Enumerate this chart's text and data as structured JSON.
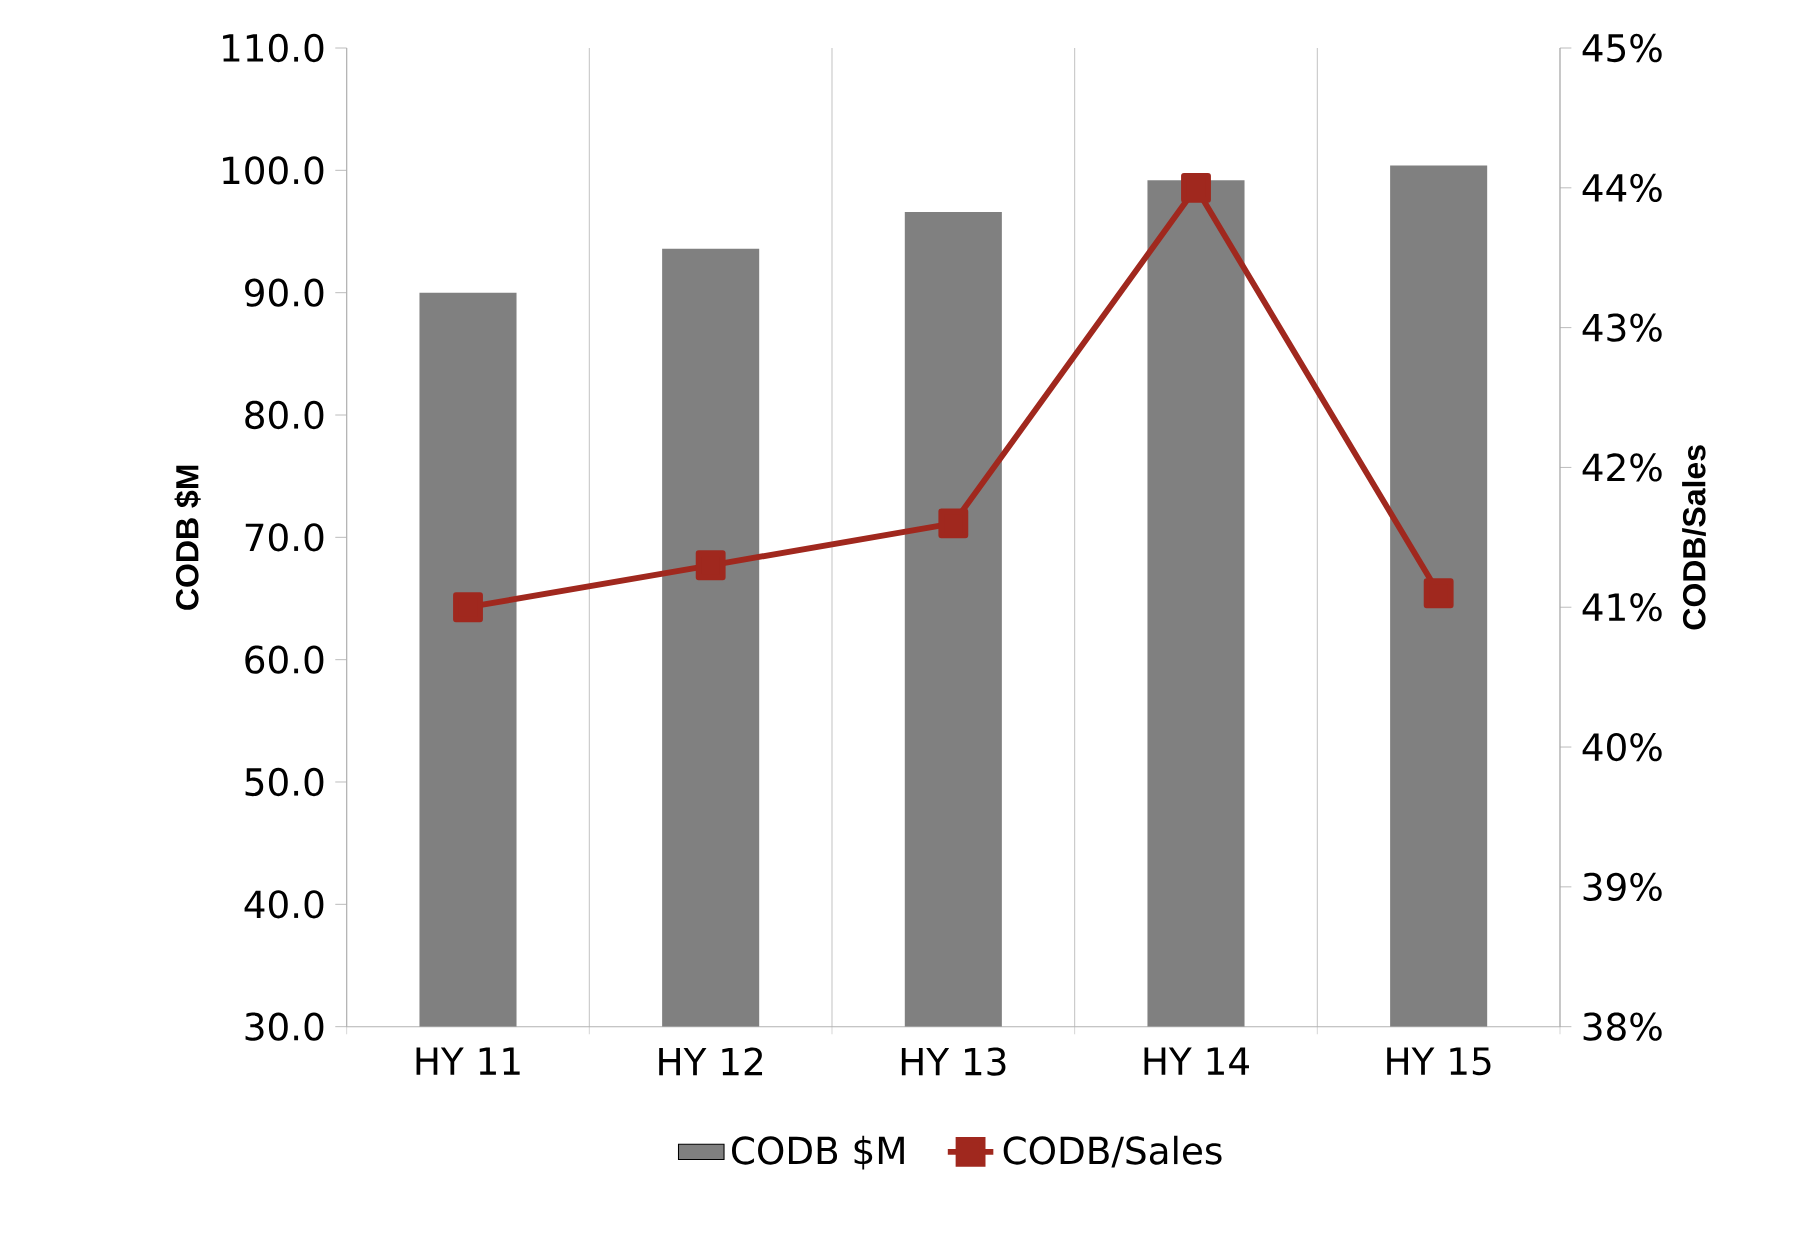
{
  "chart_data": {
    "type": "bar",
    "categories": [
      "HY 11",
      "HY 12",
      "HY 13",
      "HY 14",
      "HY 15"
    ],
    "series": [
      {
        "name": "CODB $M",
        "color": "#808080",
        "values": [
          90.0,
          93.6,
          96.6,
          99.2,
          100.4
        ]
      },
      {
        "name": "CODB/Sales",
        "type": "line",
        "axis": "y2",
        "color": "#a0281e",
        "marker": "square",
        "values": [
          41.0,
          41.3,
          41.6,
          44.0,
          41.1
        ]
      }
    ],
    "ylabel": "CODB $M",
    "y2label": "CODB/Sales",
    "ylim": [
      30,
      110
    ],
    "yticks": [
      {
        "value": 30,
        "label": "30.0"
      },
      {
        "value": 40,
        "label": "40.0"
      },
      {
        "value": 50,
        "label": "50.0"
      },
      {
        "value": 60,
        "label": "60.0"
      },
      {
        "value": 70,
        "label": "70.0"
      },
      {
        "value": 80,
        "label": "80.0"
      },
      {
        "value": 90,
        "label": "90.0"
      },
      {
        "value": 100,
        "label": "100.0"
      },
      {
        "value": 110,
        "label": "110.0"
      }
    ],
    "y2lim": [
      38,
      45
    ],
    "y2ticks": [
      {
        "value": 38,
        "label": "38%"
      },
      {
        "value": 39,
        "label": "39%"
      },
      {
        "value": 40,
        "label": "40%"
      },
      {
        "value": 41,
        "label": "41%"
      },
      {
        "value": 42,
        "label": "42%"
      },
      {
        "value": 43,
        "label": "43%"
      },
      {
        "value": 44,
        "label": "44%"
      },
      {
        "value": 45,
        "label": "45%"
      }
    ],
    "grid": "x",
    "legend": "bottom"
  }
}
